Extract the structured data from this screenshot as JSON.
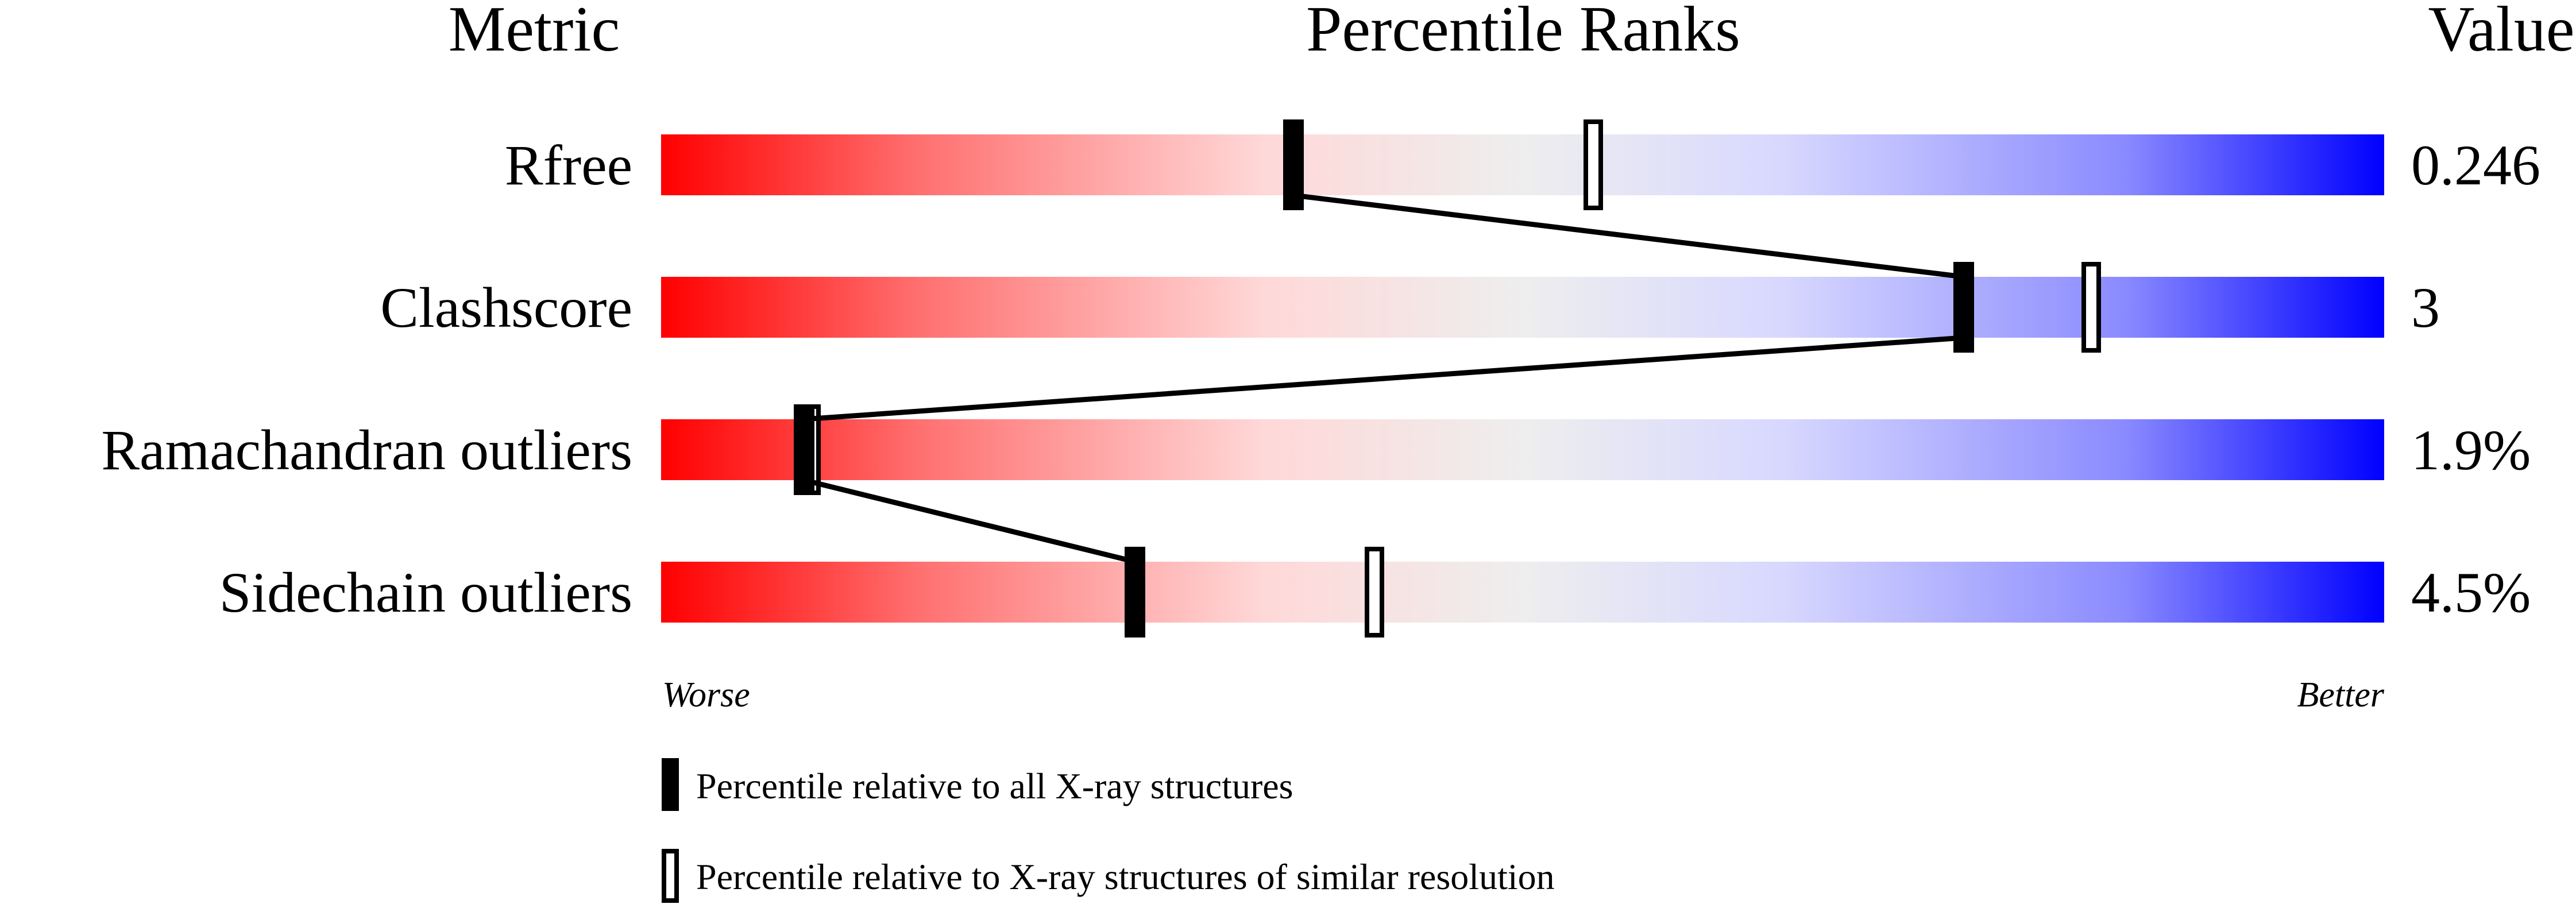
{
  "chart_data": {
    "type": "percentile-slider",
    "headers": {
      "metric": "Metric",
      "ranks": "Percentile Ranks",
      "value": "Value"
    },
    "xlim": [
      0,
      100
    ],
    "metrics": [
      {
        "name": "Rfree",
        "value": "0.246",
        "percentile_all": 36.7,
        "percentile_similar": 54.1
      },
      {
        "name": "Clashscore",
        "value": "3",
        "percentile_all": 75.6,
        "percentile_similar": 83.0
      },
      {
        "name": "Ramachandran outliers",
        "value": "1.9%",
        "percentile_all": 8.3,
        "percentile_similar": 8.7
      },
      {
        "name": "Sidechain outliers",
        "value": "4.5%",
        "percentile_all": 27.5,
        "percentile_similar": 41.4
      }
    ],
    "axis_labels": {
      "worse": "Worse",
      "better": "Better"
    },
    "legend": {
      "all": "Percentile relative to all X-ray structures",
      "similar": "Percentile relative to X-ray structures of similar resolution"
    },
    "colors": {
      "worse": "#ff0000",
      "middle": "#eeeeee",
      "better": "#0000ff"
    }
  }
}
